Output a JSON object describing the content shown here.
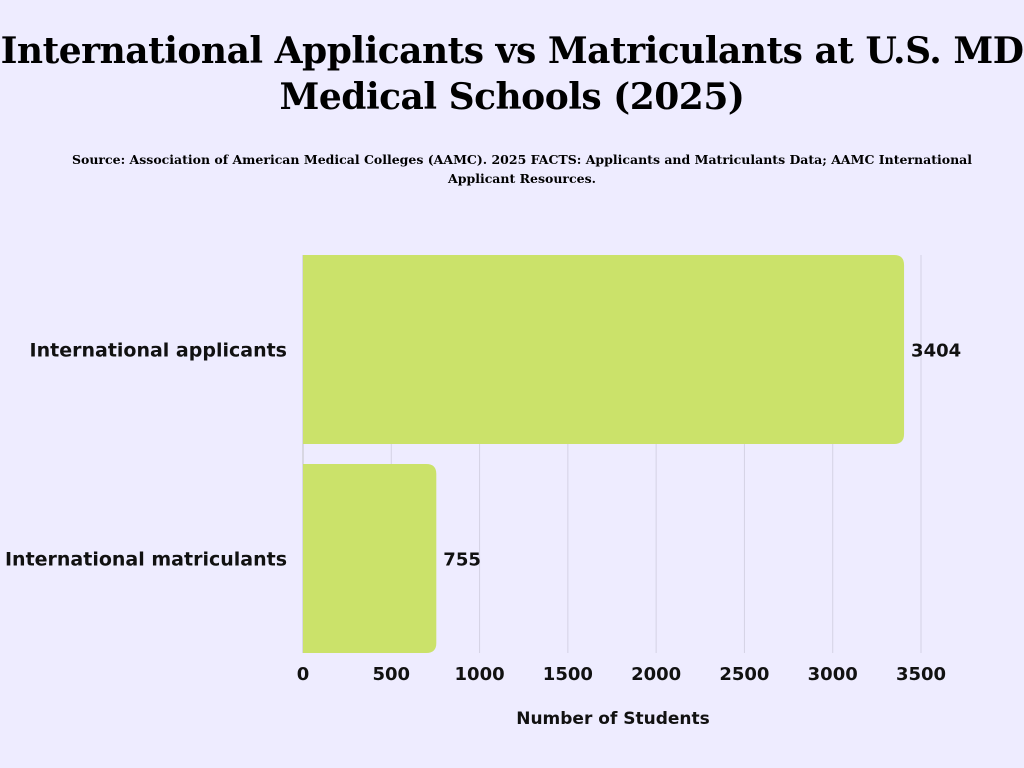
{
  "chart_data": {
    "type": "bar",
    "orientation": "horizontal",
    "title": "International Applicants vs Matriculants at U.S. MD Medical Schools (2025)",
    "subtitle": "Source: Association of American Medical Colleges (AAMC). 2025 FACTS: Applicants and Matriculants Data; AAMC International Applicant Resources.",
    "categories": [
      "International applicants",
      "International matriculants"
    ],
    "values": [
      3404,
      755
    ],
    "data_labels": [
      "3404",
      "755"
    ],
    "xlabel": "Number of Students",
    "ylabel": "",
    "xlim": [
      0,
      3500
    ],
    "xticks": [
      0,
      500,
      1000,
      1500,
      2000,
      2500,
      3000,
      3500
    ],
    "grid": "vertical",
    "bar_color": "#cbe26a",
    "background": "#eeecff",
    "grid_color": "#d4d2e4"
  }
}
